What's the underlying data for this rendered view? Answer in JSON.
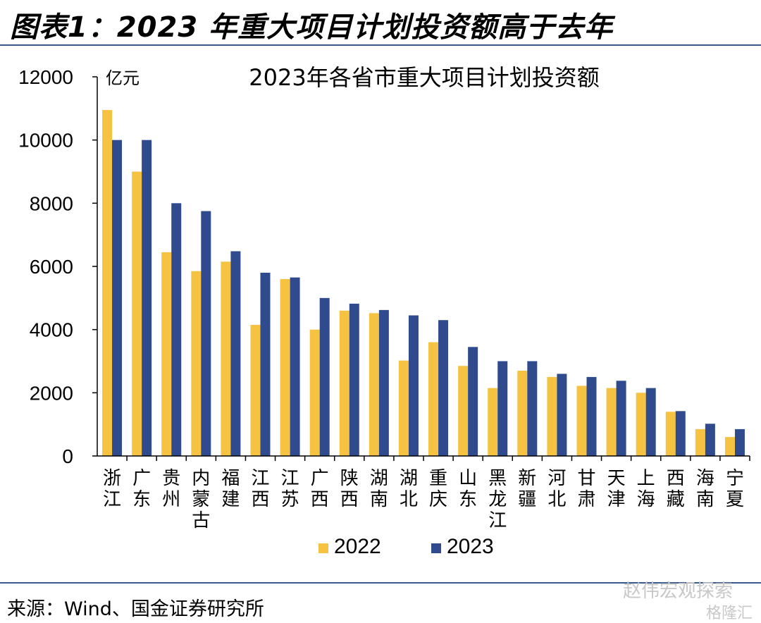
{
  "figure_title": "图表1：2023 年重大项目计划投资额高于去年",
  "source": "来源：Wind、国金证券研究所",
  "watermark": "赵伟宏观探索",
  "watermark2": "格隆汇",
  "colors": {
    "series_2022": "#F5C242",
    "series_2023": "#2F4B8E",
    "rule": "#3A5A8C"
  },
  "chart_data": {
    "type": "bar",
    "title": "2023年各省市重大项目计划投资额",
    "unit": "亿元",
    "ylim": [
      0,
      12000
    ],
    "yticks": [
      0,
      2000,
      4000,
      6000,
      8000,
      10000,
      12000
    ],
    "legend_position": "bottom",
    "categories": [
      "浙江",
      "广东",
      "贵州",
      "内蒙古",
      "福建",
      "江西",
      "江苏",
      "广西",
      "陕西",
      "湖南",
      "湖北",
      "重庆",
      "山东",
      "黑龙江",
      "新疆",
      "河北",
      "甘肃",
      "天津",
      "上海",
      "西藏",
      "海南",
      "宁夏"
    ],
    "series": [
      {
        "name": "2022",
        "values": [
          10950,
          9000,
          6450,
          5850,
          6150,
          4150,
          5600,
          4000,
          4600,
          4520,
          3020,
          3600,
          2850,
          2150,
          2700,
          2500,
          2220,
          2150,
          2000,
          1400,
          850,
          600
        ]
      },
      {
        "name": "2023",
        "values": [
          10000,
          10000,
          8000,
          7750,
          6480,
          5800,
          5650,
          5000,
          4820,
          4620,
          4450,
          4300,
          3450,
          3000,
          3000,
          2600,
          2500,
          2380,
          2150,
          1420,
          1020,
          850
        ]
      }
    ]
  }
}
